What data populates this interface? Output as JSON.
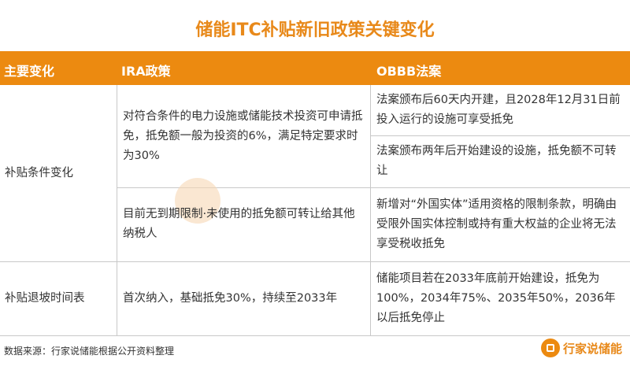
{
  "title": "储能ITC补贴新旧政策关键变化",
  "header": [
    "主要变化",
    "IRA政策",
    "OBBB法案"
  ],
  "rows": [
    {
      "label": "补贴条件变化",
      "ira": [
        "对符合条件的电力设施或储能技术投资可申请抵免，抵免额一般为投资的6%，满足特定要求时为30%",
        "目前无到期限制·未使用的抵免额可转让给其他纳税人"
      ],
      "obbb": [
        "法案颁布后60天内开建，且2028年12月31日前投入运行的设施可享受抵免",
        "法案颁布两年后开始建设的设施，抵免额不可转让",
        "新增对“外国实体”适用资格的限制条款，明确由受限外国实体控制或持有重大权益的企业将无法享受税收抵免"
      ]
    },
    {
      "label": "补贴退坡时间表",
      "ira": [
        "首次纳入，基础抵免30%，持续至2033年"
      ],
      "obbb": [
        "储能项目若在2033年底前开始建设，抵免为100%，2034年75%、2035年50%，2036年以后抵免停止"
      ]
    }
  ],
  "source": "数据来源：行家说储能根据公开资料整理",
  "brand": "行家说储能",
  "watermark": "行家说储能",
  "accent": "#ec8a10"
}
